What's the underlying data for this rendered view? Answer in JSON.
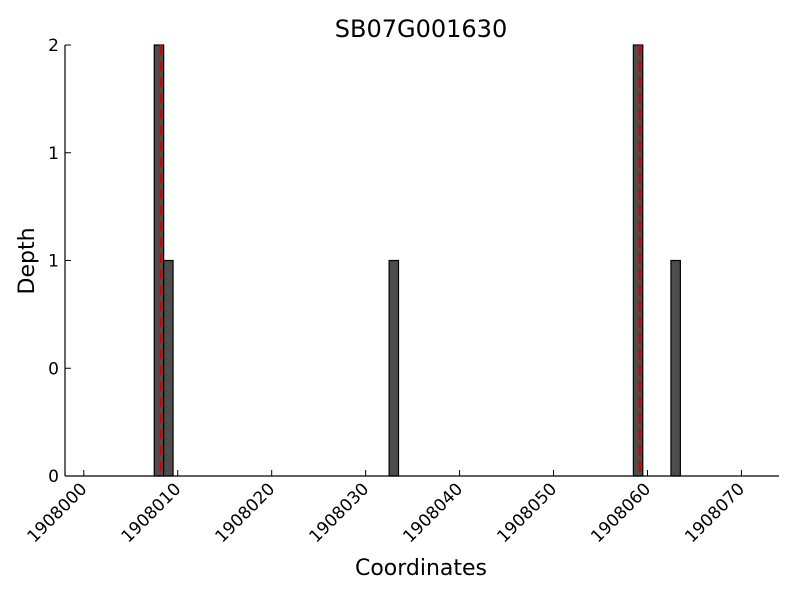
{
  "chart_data": {
    "type": "bar",
    "title": "SB07G001630",
    "xlabel": "Coordinates",
    "ylabel": "Depth",
    "xlim": [
      1907998,
      1908074
    ],
    "ylim": [
      0,
      2
    ],
    "x_ticks": [
      1908000,
      1908010,
      1908020,
      1908030,
      1908040,
      1908050,
      1908060,
      1908070
    ],
    "x_tick_labels": [
      "1908000",
      "1908010",
      "1908020",
      "1908030",
      "1908040",
      "1908050",
      "1908060",
      "1908070"
    ],
    "y_ticks": [
      0,
      0.5,
      1,
      1.5,
      2
    ],
    "y_tick_labels": [
      "0",
      "0",
      "1",
      "1",
      "2"
    ],
    "bar_color": "#4d4d4d",
    "marker_color": "#d40000",
    "series": [
      {
        "x": [
          1908008,
          1908009,
          1908033,
          1908059,
          1908063
        ],
        "values": [
          2,
          1,
          1,
          2,
          1
        ]
      }
    ],
    "vlines": [
      1908008.2,
      1908059.2
    ],
    "grid": false,
    "legend": "none"
  }
}
